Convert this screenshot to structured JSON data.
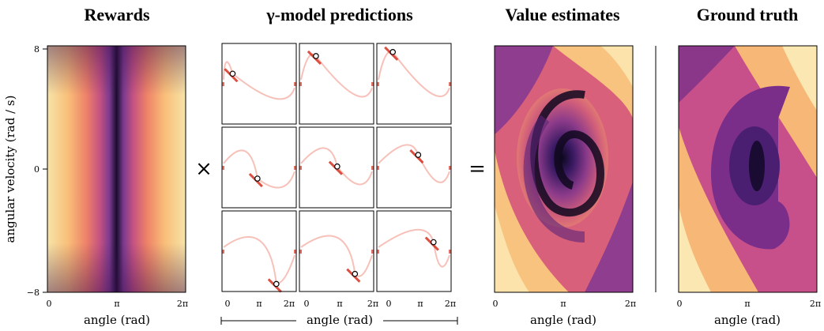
{
  "titles": {
    "rewards": "Rewards",
    "gamma": "γ-model predictions",
    "value": "Value estimates",
    "truth": "Ground truth"
  },
  "axes": {
    "xlabel": "angle (rad)",
    "ylabel": "angular velocity (rad / s)",
    "x_ticks": [
      "0",
      "π",
      "2π"
    ],
    "y_ticks": [
      "8",
      "0",
      "−8"
    ],
    "xlim": [
      0,
      6.2832
    ],
    "ylim": [
      -8,
      8
    ]
  },
  "operators": {
    "times": "×",
    "equals": "="
  },
  "chart_data": [
    {
      "type": "heatmap",
      "title": "Rewards",
      "xlabel": "angle (rad)",
      "ylabel": "angular velocity (rad / s)",
      "xlim": [
        0,
        6.2832
      ],
      "ylim": [
        -8,
        8
      ],
      "colormap": "magma",
      "description_values": "highest at angle 0 / 2π and low velocity; lowest at angle π"
    },
    {
      "type": "heatmap",
      "title": "γ-model predictions",
      "xlabel": "angle (rad)",
      "grid": "3x3",
      "colormap": "reds",
      "query_points": [
        {
          "angle": 0.9,
          "velocity": 2.0
        },
        {
          "angle": 1.4,
          "velocity": 5.5
        },
        {
          "angle": 1.35,
          "velocity": 6.3
        },
        {
          "angle": 3.0,
          "velocity": -2.2
        },
        {
          "angle": 3.2,
          "velocity": 0.2
        },
        {
          "angle": 3.5,
          "velocity": 2.5
        },
        {
          "angle": 4.6,
          "velocity": -6.5
        },
        {
          "angle": 4.7,
          "velocity": -4.5
        },
        {
          "angle": 4.8,
          "velocity": 1.8
        }
      ]
    },
    {
      "type": "heatmap",
      "title": "Value estimates",
      "xlabel": "angle (rad)",
      "xlim": [
        0,
        6.2832
      ],
      "ylim": [
        -8,
        8
      ],
      "colormap": "magma"
    },
    {
      "type": "heatmap",
      "title": "Ground truth",
      "xlabel": "angle (rad)",
      "xlim": [
        0,
        6.2832
      ],
      "ylim": [
        -8,
        8
      ],
      "colormap": "magma"
    }
  ]
}
